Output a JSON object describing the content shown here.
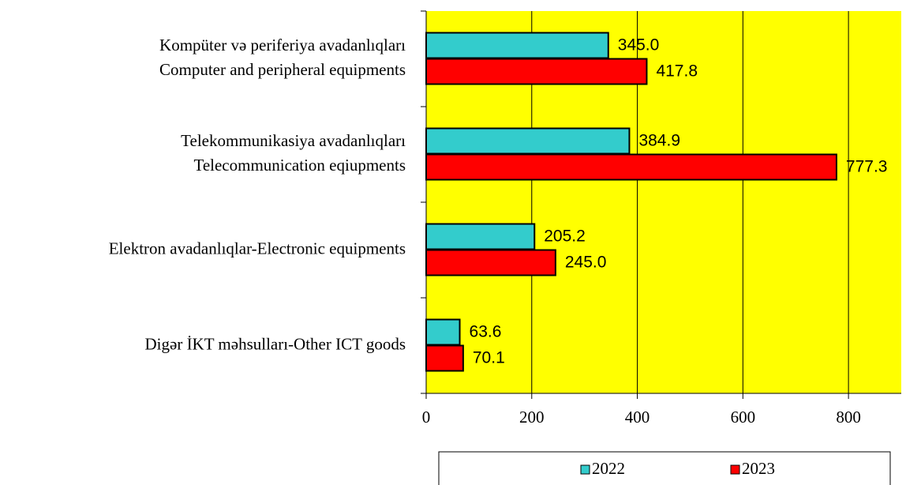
{
  "chart_data": {
    "type": "bar",
    "orientation": "horizontal",
    "categories": [
      [
        "Kompüter və periferiya avadanlıqları",
        "Computer and peripheral equipments"
      ],
      [
        "Telekommunikasiya avadanlıqları",
        "Telecommunication eqiupments"
      ],
      [
        "Elektron avadanlıqlar-Electronic equipments"
      ],
      [
        "Digər İKT məhsulları-Other ICT goods"
      ]
    ],
    "series": [
      {
        "name": "2022",
        "color": "#33cccc",
        "values": [
          345.0,
          384.9,
          205.2,
          63.6
        ],
        "value_labels": [
          "345.0",
          "384.9",
          "205.2",
          "63.6"
        ]
      },
      {
        "name": "2023",
        "color": "#ff0000",
        "values": [
          417.8,
          777.3,
          245.0,
          70.1
        ],
        "value_labels": [
          "417.8",
          "777.3",
          "245.0",
          "70.1"
        ]
      }
    ],
    "xlim": [
      0,
      900
    ],
    "xticks": [
      0,
      200,
      400,
      600,
      800
    ],
    "grid": true,
    "background": "#ffff00",
    "legend": "bottom"
  }
}
